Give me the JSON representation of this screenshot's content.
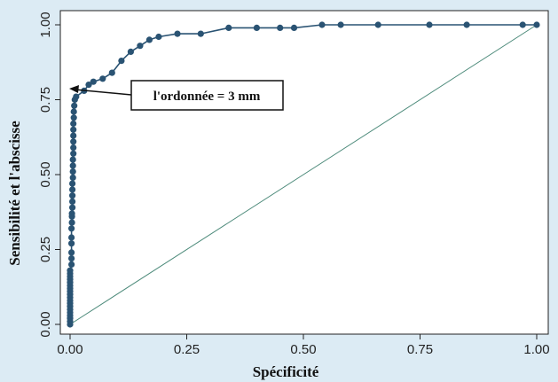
{
  "chart_data": {
    "type": "scatter",
    "xlabel": "Spécificité",
    "ylabel": "Sensibilité et l'abscisse",
    "xlim": [
      0,
      1
    ],
    "ylim": [
      0,
      1
    ],
    "x_ticks": [
      "0.00",
      "0.25",
      "0.50",
      "0.75",
      "1.00"
    ],
    "y_ticks": [
      "0.00",
      "0.25",
      "0.50",
      "0.75",
      "1.00"
    ],
    "grid": false,
    "annotation": {
      "text": "l'ordonnée = 3 mm",
      "target": [
        0.03,
        0.78
      ]
    },
    "series": [
      {
        "role": "roc-curve",
        "color": "#2a5373",
        "points": [
          [
            0,
            0
          ],
          [
            0,
            0.01
          ],
          [
            0,
            0.02
          ],
          [
            0,
            0.03
          ],
          [
            0,
            0.04
          ],
          [
            0,
            0.05
          ],
          [
            0,
            0.06
          ],
          [
            0,
            0.07
          ],
          [
            0,
            0.08
          ],
          [
            0,
            0.09
          ],
          [
            0,
            0.1
          ],
          [
            0,
            0.11
          ],
          [
            0,
            0.12
          ],
          [
            0,
            0.13
          ],
          [
            0,
            0.14
          ],
          [
            0,
            0.15
          ],
          [
            0,
            0.16
          ],
          [
            0,
            0.17
          ],
          [
            0,
            0.18
          ],
          [
            0.003,
            0.2
          ],
          [
            0.003,
            0.22
          ],
          [
            0.003,
            0.24
          ],
          [
            0.003,
            0.27
          ],
          [
            0.003,
            0.29
          ],
          [
            0.003,
            0.32
          ],
          [
            0.004,
            0.34
          ],
          [
            0.004,
            0.36
          ],
          [
            0.004,
            0.37
          ],
          [
            0.005,
            0.39
          ],
          [
            0.005,
            0.41
          ],
          [
            0.005,
            0.43
          ],
          [
            0.005,
            0.45
          ],
          [
            0.005,
            0.47
          ],
          [
            0.006,
            0.49
          ],
          [
            0.006,
            0.51
          ],
          [
            0.006,
            0.53
          ],
          [
            0.006,
            0.55
          ],
          [
            0.007,
            0.57
          ],
          [
            0.007,
            0.59
          ],
          [
            0.007,
            0.61
          ],
          [
            0.007,
            0.63
          ],
          [
            0.007,
            0.65
          ],
          [
            0.007,
            0.67
          ],
          [
            0.008,
            0.69
          ],
          [
            0.008,
            0.71
          ],
          [
            0.009,
            0.73
          ],
          [
            0.01,
            0.75
          ],
          [
            0.013,
            0.76
          ],
          [
            0.03,
            0.78
          ],
          [
            0.04,
            0.8
          ],
          [
            0.05,
            0.81
          ],
          [
            0.07,
            0.82
          ],
          [
            0.09,
            0.84
          ],
          [
            0.11,
            0.88
          ],
          [
            0.13,
            0.91
          ],
          [
            0.15,
            0.93
          ],
          [
            0.17,
            0.95
          ],
          [
            0.19,
            0.96
          ],
          [
            0.23,
            0.97
          ],
          [
            0.28,
            0.97
          ],
          [
            0.34,
            0.99
          ],
          [
            0.4,
            0.99
          ],
          [
            0.45,
            0.99
          ],
          [
            0.48,
            0.99
          ],
          [
            0.54,
            1.0
          ],
          [
            0.58,
            1.0
          ],
          [
            0.66,
            1.0
          ],
          [
            0.77,
            1.0
          ],
          [
            0.85,
            1.0
          ],
          [
            0.97,
            1.0
          ],
          [
            1.0,
            1.0
          ]
        ]
      },
      {
        "role": "reference-line",
        "color": "#4c8a7a",
        "points": [
          [
            0,
            0
          ],
          [
            1,
            1
          ]
        ]
      }
    ]
  }
}
